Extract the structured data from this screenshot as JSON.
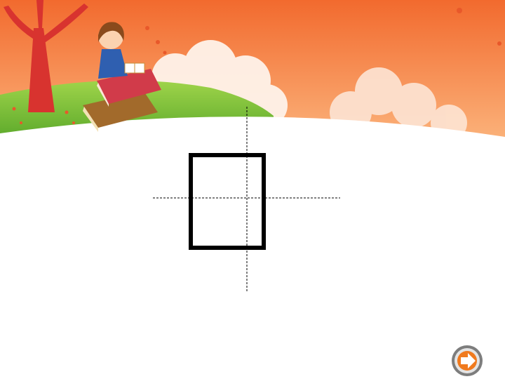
{
  "slide": {
    "banner": {
      "illustration": "cartoon-girl-reading-on-books-under-tree",
      "colors": {
        "sky_top": "#f26a2e",
        "sky_bottom": "#fbb27a",
        "grass": "#7cc23a",
        "tree": "#d8332f"
      }
    },
    "figure": {
      "shape": "rectangle-outline",
      "guides": [
        "dashed-horizontal-line",
        "dashed-vertical-line"
      ],
      "stroke_color": "#000000"
    },
    "navigation": {
      "next_icon": "arrow-right-icon",
      "colors": {
        "ring": "#7d7d7d",
        "arrow": "#f07a1e"
      }
    }
  }
}
